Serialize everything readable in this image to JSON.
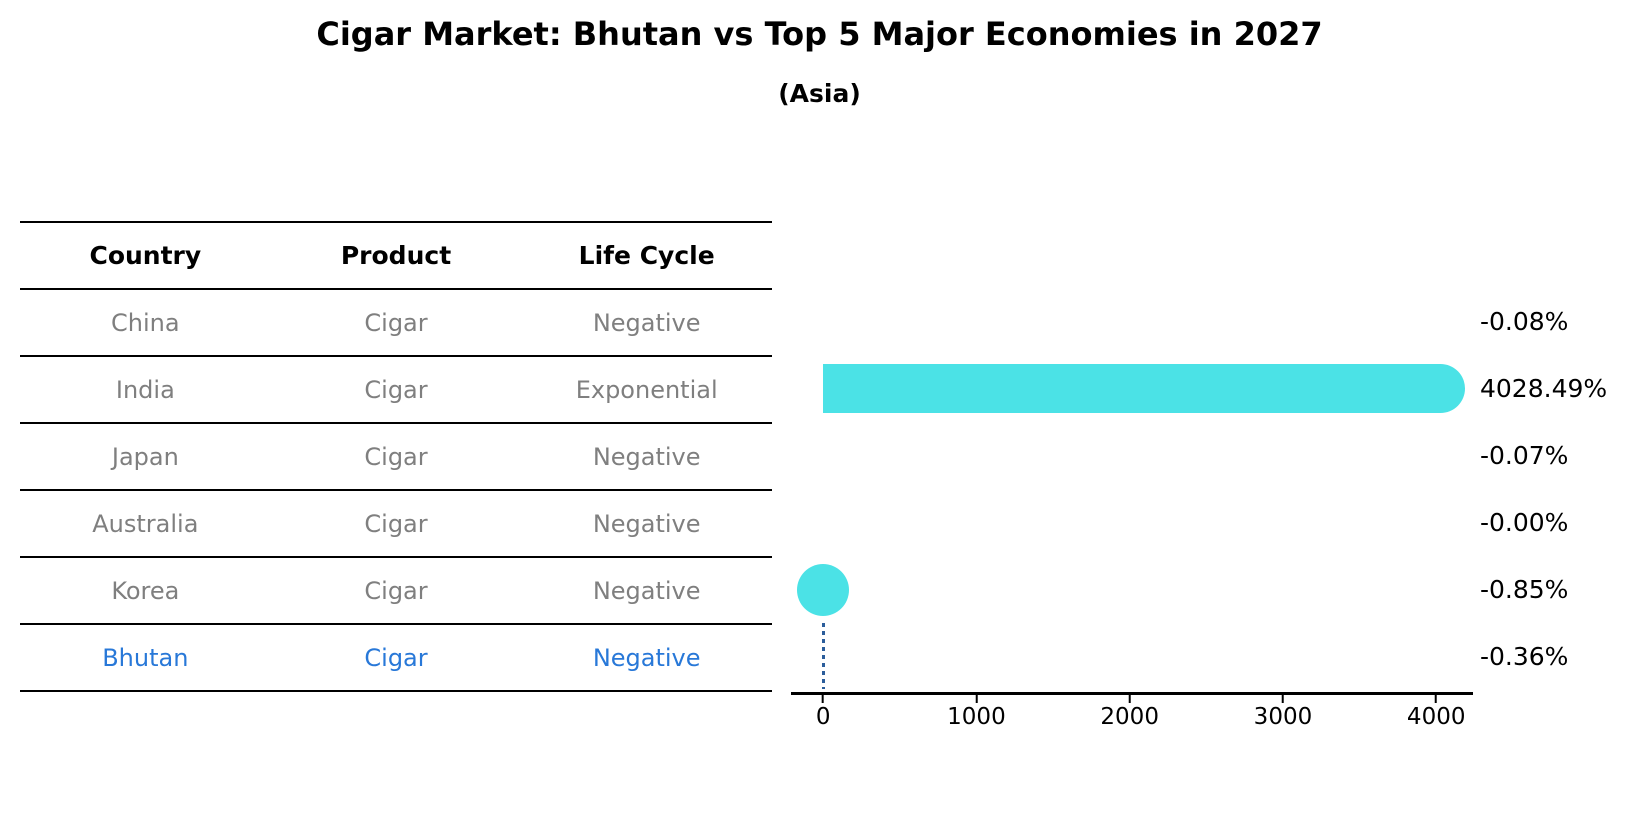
{
  "title": "Cigar Market: Bhutan vs Top 5 Major Economies in 2027",
  "subtitle": "(Asia)",
  "table": {
    "headers": [
      "Country",
      "Product",
      "Life Cycle"
    ],
    "rows": [
      {
        "country": "China",
        "product": "Cigar",
        "life_cycle": "Negative"
      },
      {
        "country": "India",
        "product": "Cigar",
        "life_cycle": "Exponential"
      },
      {
        "country": "Japan",
        "product": "Cigar",
        "life_cycle": "Negative"
      },
      {
        "country": "Australia",
        "product": "Cigar",
        "life_cycle": "Negative"
      },
      {
        "country": "Korea",
        "product": "Cigar",
        "life_cycle": "Negative"
      },
      {
        "country": "Bhutan",
        "product": "Cigar",
        "life_cycle": "Negative"
      }
    ],
    "highlighted_row": "Bhutan"
  },
  "chart_data": {
    "type": "bar",
    "orientation": "horizontal",
    "title": "Cigar Market: Bhutan vs Top 5 Major Economies in 2027",
    "subtitle": "(Asia)",
    "categories": [
      "China",
      "India",
      "Japan",
      "Australia",
      "Korea",
      "Bhutan"
    ],
    "values": [
      -0.08,
      4028.49,
      -0.07,
      -0.0,
      -0.85,
      -0.36
    ],
    "value_labels": [
      "-0.08%",
      "4028.49%",
      "-0.07%",
      "-0.00%",
      "-0.85%",
      "-0.36%"
    ],
    "marker_styles": [
      "none",
      "bar",
      "none",
      "none",
      "dot",
      "dotted-line"
    ],
    "x_ticks": [
      0,
      1000,
      2000,
      3000,
      4000
    ],
    "xlim": [
      -210,
      4240
    ],
    "xlabel": "",
    "ylabel": "",
    "grid": false,
    "legend": null,
    "colors": {
      "bar": "#4be2e6",
      "dot": "#4be2e6",
      "dotted_line": "#2b5d9b",
      "highlight_text": "#2878d8",
      "cell_text": "#7f7f7f",
      "header_text": "#000000"
    }
  }
}
